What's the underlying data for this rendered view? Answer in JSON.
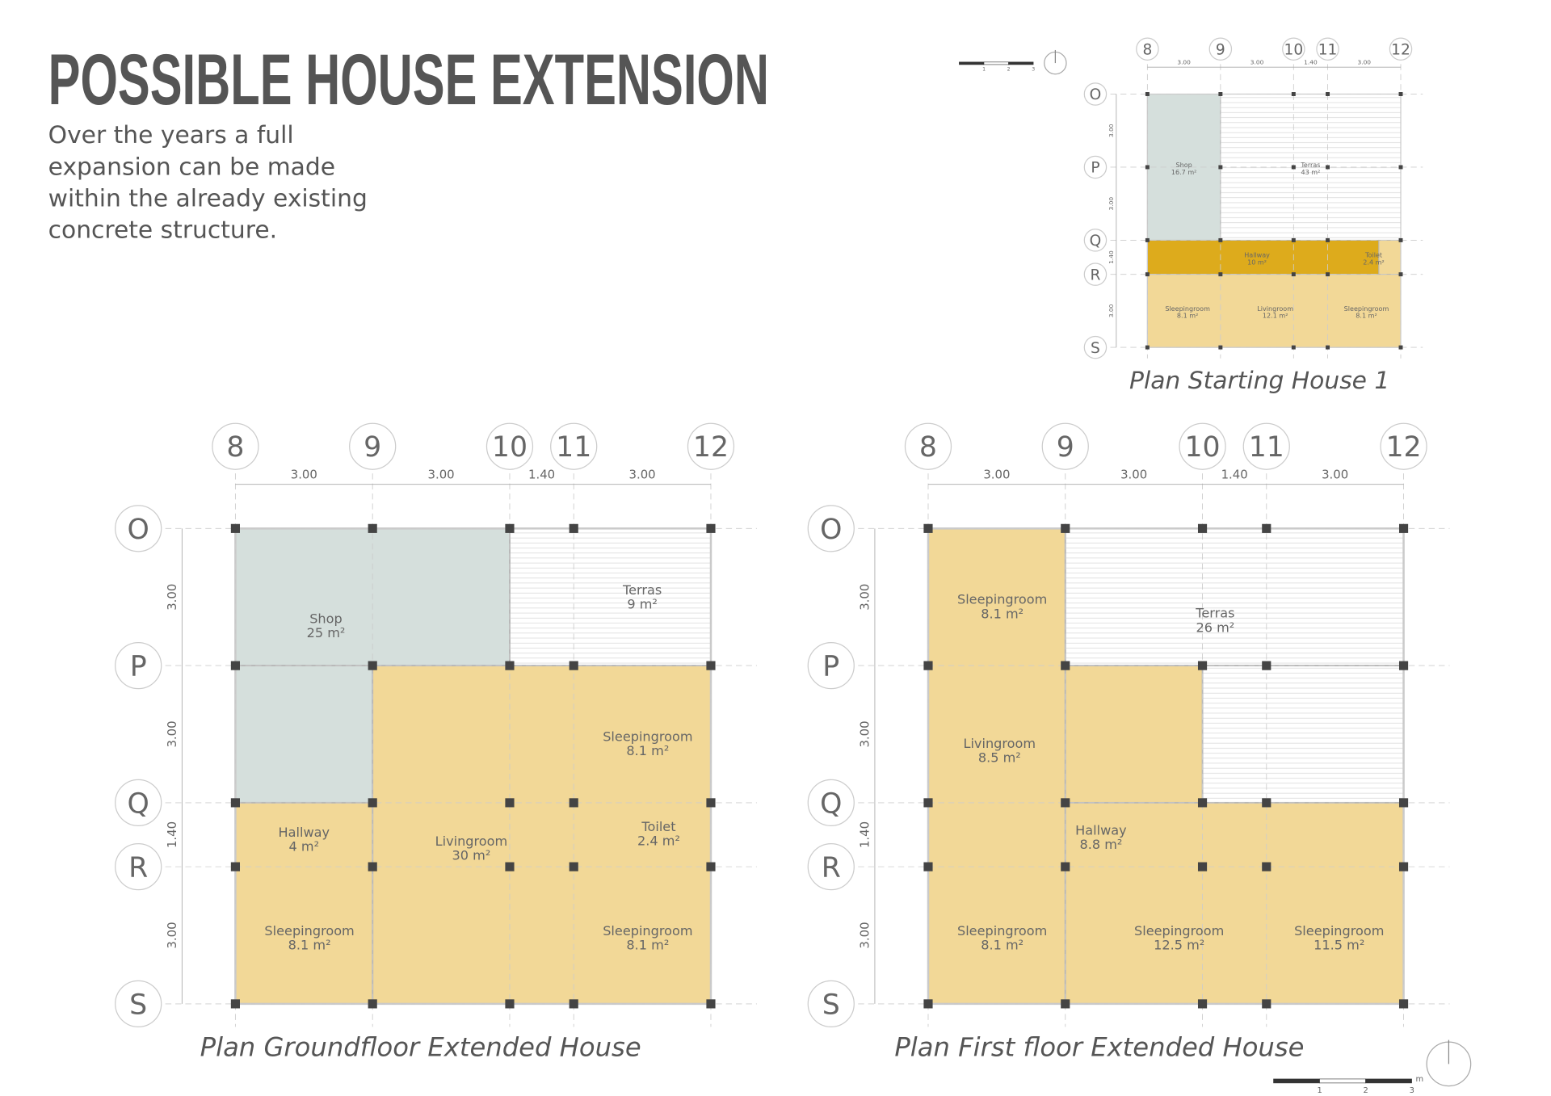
{
  "header": {
    "title": "POSSIBLE HOUSE EXTENSION",
    "description": [
      "Over the years a full",
      "expansion can be made",
      "within the already existing",
      "concrete structure."
    ]
  },
  "plans": [
    {
      "caption": "Plan Starting House 1",
      "columns": [
        "8",
        "9",
        "10",
        "11",
        "12"
      ],
      "column_dimensions": [
        "3.00",
        "3.00",
        "1.40",
        "3.00"
      ],
      "rows": [
        "O",
        "P",
        "Q",
        "R",
        "S"
      ],
      "row_dimensions": [
        "3.00",
        "3.00",
        "1.40",
        "3.00"
      ],
      "rooms": [
        {
          "name": "Shop",
          "area": "16.7 m²"
        },
        {
          "name": "Terras",
          "area": "43 m²"
        },
        {
          "name": "Hallway",
          "area": "10 m²"
        },
        {
          "name": "Toilet",
          "area": "2.4 m²"
        },
        {
          "name": "Sleepingroom",
          "area": "8.1 m²"
        },
        {
          "name": "Livingroom",
          "area": "12.1 m²"
        },
        {
          "name": "Sleepingroom",
          "area": "8.1 m²"
        }
      ]
    },
    {
      "caption": "Plan Groundfloor Extended House",
      "columns": [
        "8",
        "9",
        "10",
        "11",
        "12"
      ],
      "column_dimensions": [
        "3.00",
        "3.00",
        "1.40",
        "3.00"
      ],
      "rows": [
        "O",
        "P",
        "Q",
        "R",
        "S"
      ],
      "row_dimensions": [
        "3.00",
        "3.00",
        "1.40",
        "3.00"
      ],
      "rooms": [
        {
          "name": "Shop",
          "area": "25 m²"
        },
        {
          "name": "Terras",
          "area": "9 m²"
        },
        {
          "name": "Sleepingroom",
          "area": "8.1 m²"
        },
        {
          "name": "Toilet",
          "area": "2.4 m²"
        },
        {
          "name": "Livingroom",
          "area": "30 m²"
        },
        {
          "name": "Hallway",
          "area": "4 m²"
        },
        {
          "name": "Sleepingroom",
          "area": "8.1 m²"
        },
        {
          "name": "Sleepingroom",
          "area": "8.1 m²"
        }
      ]
    },
    {
      "caption": "Plan First floor Extended House",
      "columns": [
        "8",
        "9",
        "10",
        "11",
        "12"
      ],
      "column_dimensions": [
        "3.00",
        "3.00",
        "1.40",
        "3.00"
      ],
      "rows": [
        "O",
        "P",
        "Q",
        "R",
        "S"
      ],
      "row_dimensions": [
        "3.00",
        "3.00",
        "1.40",
        "3.00"
      ],
      "rooms": [
        {
          "name": "Sleepingroom",
          "area": "8.1 m²"
        },
        {
          "name": "Terras",
          "area": "26 m²"
        },
        {
          "name": "Livingroom",
          "area": "8.5 m²"
        },
        {
          "name": "Hallway",
          "area": "8.8 m²"
        },
        {
          "name": "Sleepingroom",
          "area": "8.1 m²"
        },
        {
          "name": "Sleepingroom",
          "area": "12.5 m²"
        },
        {
          "name": "Sleepingroom",
          "area": "11.5 m²"
        }
      ]
    }
  ],
  "scale_bars": [
    {
      "labels": [
        "1",
        "2",
        "3"
      ]
    },
    {
      "labels": [
        "1",
        "2",
        "3",
        "m"
      ]
    }
  ]
}
